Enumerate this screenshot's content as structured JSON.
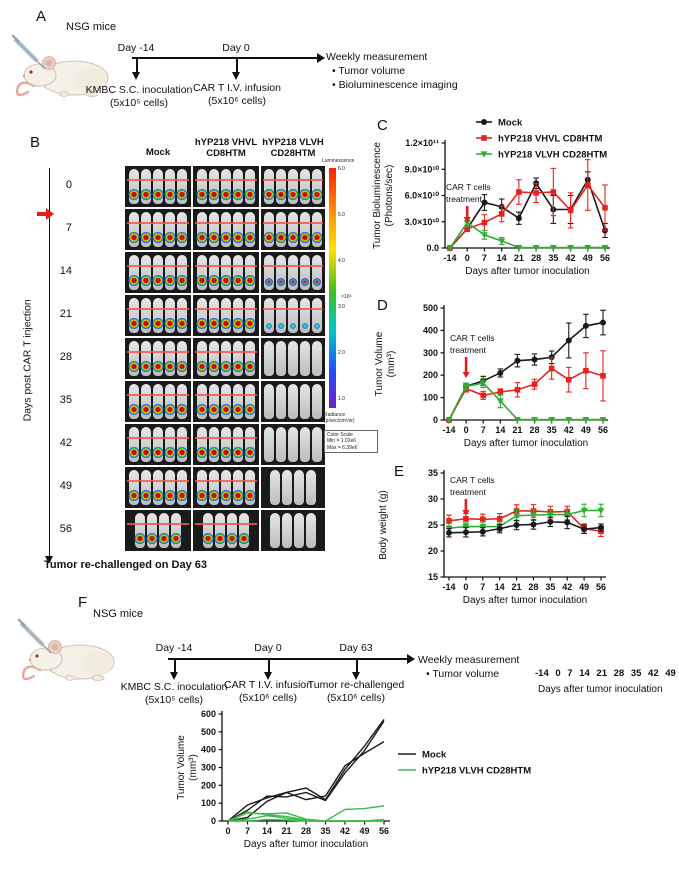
{
  "colors": {
    "black": "#1a1a1a",
    "red": "#e8231f",
    "green": "#2fad34",
    "green_light": "#3dbb4a",
    "arrow_red": "#e02020"
  },
  "panelA": {
    "label": "A",
    "subject": "NSG mice",
    "timepoints": [
      {
        "day": "Day -14",
        "event": "KMBC S.C. inoculation",
        "dose": "(5x10⁵ cells)"
      },
      {
        "day": "Day 0",
        "event": "CAR T I.V. infusion",
        "dose": "(5x10⁶ cells)"
      }
    ],
    "measurement": {
      "title": "Weekly measurement",
      "items": [
        "Tumor volume",
        "Bioluminescence imaging"
      ]
    }
  },
  "panelB": {
    "label": "B",
    "axis_label": "Days post CAR T injection",
    "columns": [
      [
        "Mock"
      ],
      [
        "hYP218 VHVL",
        "CD8HTM"
      ],
      [
        "hYP218 VLVH",
        "CD28HTM"
      ]
    ],
    "days": [
      "0",
      "7",
      "14",
      "21",
      "28",
      "35",
      "42",
      "49",
      "56"
    ],
    "cells": [
      [
        "5f",
        "5f",
        "5f"
      ],
      [
        "5f",
        "5f",
        "5f"
      ],
      [
        "5f",
        "5f",
        "5m"
      ],
      [
        "5f",
        "5f",
        "5t"
      ],
      [
        "5f",
        "5f",
        "5n"
      ],
      [
        "5f",
        "5f",
        "5n"
      ],
      [
        "5f",
        "5f",
        "5n"
      ],
      [
        "5f",
        "5f",
        "4n"
      ],
      [
        "4f",
        "4f",
        "4n"
      ]
    ],
    "colorbar": {
      "title": "Luminescence",
      "ticks": [
        "6.0",
        "5.0",
        "4.0",
        "3.0",
        "2.0",
        "1.0"
      ],
      "unit": "×10⁶",
      "radiance": [
        "Radiance",
        "(p/sec/cm²/sr)"
      ],
      "scale": [
        "Color Scale",
        "Min = 1.02e6",
        "Max = 6.39e6"
      ]
    },
    "footnote": "Tumor re-challenged on Day 63"
  },
  "panelF": {
    "label": "F",
    "subject": "NSG mice",
    "timepoints": [
      {
        "day": "Day -14",
        "event": "KMBC S.C. inoculation",
        "dose": "(5x10⁵ cells)"
      },
      {
        "day": "Day 0",
        "event": "CAR T I.V. infusion",
        "dose": "(5x10⁶ cells)"
      },
      {
        "day": "Day 63",
        "event": "Tumor re-challenged",
        "dose": "(5x10⁶ cells)"
      }
    ],
    "measurement": {
      "title": "Weekly measurement",
      "items": [
        "Tumor volume"
      ]
    }
  },
  "stray_axis": {
    "ticks": "-14  0   7   14  21 28 35 42 49",
    "label": "Days after tumor inoculation"
  },
  "chart_data": [
    {
      "id": "chartC",
      "panel_label": "C",
      "type": "line",
      "xlabel": "Days after tumor inoculation",
      "ylabel": [
        "Tumor Bioluminescence",
        "(Photons/sec)"
      ],
      "categories": [
        "-14",
        "0",
        "7",
        "14",
        "21",
        "28",
        "35",
        "42",
        "49",
        "56"
      ],
      "ylim": [
        0,
        12
      ],
      "yticks": [
        0,
        3,
        6,
        9,
        12
      ],
      "ytick_labels": [
        "0.0",
        "3.0×10¹⁰",
        "6.0×10¹⁰",
        "9.0×10¹⁰",
        "1.2×10¹¹"
      ],
      "y_unit": "1e10 photons/sec",
      "series": [
        {
          "name": "Mock",
          "color": "#1a1a1a",
          "marker": "circle",
          "values": [
            0,
            2.2,
            5.2,
            4.7,
            3.4,
            7.4,
            4.4,
            4.4,
            7.8,
            2.0
          ],
          "err": [
            0,
            0.3,
            0.9,
            0.9,
            0.7,
            0.6,
            1.6,
            1.6,
            0.9,
            0.8
          ]
        },
        {
          "name": "hYP218 VHVL CD8HTM",
          "color": "#e8231f",
          "marker": "square",
          "values": [
            0,
            2.2,
            2.9,
            3.9,
            6.4,
            6.3,
            6.4,
            4.3,
            7.2,
            4.6
          ],
          "err": [
            0,
            0.3,
            0.9,
            0.9,
            1.4,
            1.1,
            2.7,
            2.0,
            2.9,
            2.6
          ]
        },
        {
          "name": "hYP218 VLVH CD28HTM",
          "color": "#2fad34",
          "marker": "triangle",
          "values": [
            0,
            2.9,
            1.5,
            0.8,
            0.05,
            0.05,
            0.05,
            0.05,
            0.05,
            0.05
          ],
          "err": [
            0,
            0.5,
            0.5,
            0.4,
            0,
            0,
            0,
            0,
            0,
            0
          ]
        }
      ],
      "legend": true,
      "annotation": {
        "text": [
          "CAR T cells",
          "treatment"
        ],
        "at_category": "0"
      }
    },
    {
      "id": "chartD",
      "panel_label": "D",
      "type": "line",
      "xlabel": "Days after tumor inoculation",
      "ylabel": [
        "Tumor Volume",
        "(mm³)"
      ],
      "categories": [
        "-14",
        "0",
        "7",
        "14",
        "21",
        "28",
        "35",
        "42",
        "49",
        "56"
      ],
      "ylim": [
        0,
        500
      ],
      "yticks": [
        0,
        100,
        200,
        300,
        400,
        500
      ],
      "ytick_labels": [
        "0",
        "100",
        "200",
        "300",
        "400",
        "500"
      ],
      "y_unit": "mm3",
      "series": [
        {
          "name": "Mock",
          "color": "#1a1a1a",
          "marker": "circle",
          "values": [
            0,
            150,
            175,
            210,
            265,
            270,
            280,
            355,
            420,
            435
          ],
          "err": [
            0,
            15,
            20,
            18,
            28,
            25,
            28,
            78,
            52,
            55
          ]
        },
        {
          "name": "hYP218 VHVL CD8HTM",
          "color": "#e8231f",
          "marker": "square",
          "values": [
            0,
            140,
            110,
            125,
            135,
            160,
            230,
            180,
            220,
            197
          ],
          "err": [
            0,
            15,
            18,
            14,
            32,
            22,
            48,
            55,
            80,
            112
          ]
        },
        {
          "name": "hYP218 VLVH CD28HTM",
          "color": "#2fad34",
          "marker": "triangle",
          "values": [
            0,
            150,
            165,
            85,
            2,
            2,
            2,
            2,
            2,
            2
          ],
          "err": [
            0,
            15,
            20,
            30,
            0,
            0,
            0,
            0,
            0,
            0
          ]
        }
      ],
      "legend": false,
      "annotation": {
        "text": [
          "CAR T cells",
          "treatment"
        ],
        "at_category": "0"
      }
    },
    {
      "id": "chartE",
      "panel_label": "E",
      "type": "line",
      "xlabel": "Days after tumor inoculation",
      "ylabel": [
        "Body weight (g)"
      ],
      "categories": [
        "-14",
        "0",
        "7",
        "14",
        "21",
        "28",
        "35",
        "42",
        "49",
        "56"
      ],
      "ylim": [
        15,
        35
      ],
      "yticks": [
        15,
        20,
        25,
        30,
        35
      ],
      "ytick_labels": [
        "15",
        "20",
        "25",
        "30",
        "35"
      ],
      "y_unit": "g",
      "series": [
        {
          "name": "hYP218 VHVL CD8HTM",
          "color": "#e8231f",
          "marker": "square",
          "values": [
            25.8,
            26.2,
            26.1,
            26.2,
            27.7,
            27.7,
            27.5,
            27.6,
            24.3,
            23.8
          ],
          "err": [
            1.1,
            1.0,
            1.0,
            1.0,
            1.2,
            1.2,
            1.1,
            1.0,
            0.9,
            1.0
          ]
        },
        {
          "name": "hYP218 VLVH CD28HTM",
          "color": "#2fad34",
          "marker": "triangle",
          "values": [
            24.4,
            24.7,
            24.7,
            24.7,
            26.8,
            26.9,
            27.0,
            27.0,
            27.8,
            27.8
          ],
          "err": [
            0.9,
            0.9,
            0.9,
            0.9,
            1.0,
            1.0,
            1.0,
            1.0,
            1.2,
            1.2
          ]
        },
        {
          "name": "Mock",
          "color": "#1a1a1a",
          "marker": "circle",
          "values": [
            23.5,
            23.6,
            23.7,
            24.3,
            25.0,
            25.1,
            25.6,
            25.5,
            24.2,
            24.5
          ],
          "err": [
            0.8,
            0.9,
            0.8,
            0.8,
            0.9,
            0.9,
            0.9,
            1.2,
            0.8,
            0.7
          ]
        }
      ],
      "legend": false,
      "annotation": {
        "text": [
          "CAR T cells",
          "treatment"
        ],
        "at_category": "0"
      }
    },
    {
      "id": "chartF",
      "type": "line",
      "xlabel": "Days after tumor inoculation",
      "ylabel": [
        "Tumor Volume",
        "(mm³)"
      ],
      "categories": [
        "0",
        "7",
        "14",
        "21",
        "28",
        "35",
        "42",
        "49",
        "56"
      ],
      "ylim": [
        0,
        600
      ],
      "yticks": [
        0,
        100,
        200,
        300,
        400,
        500,
        600
      ],
      "ytick_labels": [
        "0",
        "100",
        "200",
        "300",
        "400",
        "500",
        "600"
      ],
      "y_unit": "mm3",
      "series": [
        {
          "name": "Mock",
          "color": "#1a1a1a",
          "marker": "none",
          "lines": [
            [
              0,
              90,
              130,
              160,
              185,
              120,
              290,
              420,
              570
            ],
            [
              0,
              60,
              140,
              135,
              160,
              115,
              270,
              395,
              560
            ],
            [
              0,
              20,
              110,
              160,
              120,
              140,
              310,
              380,
              445
            ]
          ]
        },
        {
          "name": "hYP218 VLVH CD28HTM",
          "color": "#3dbb4a",
          "marker": "none",
          "lines": [
            [
              0,
              45,
              40,
              45,
              10,
              0,
              65,
              70,
              85
            ],
            [
              0,
              50,
              35,
              25,
              5,
              0,
              0,
              0,
              8
            ],
            [
              0,
              10,
              30,
              15,
              2,
              0,
              0,
              0,
              0
            ],
            [
              0,
              0,
              8,
              5,
              0,
              0,
              0,
              0,
              0
            ]
          ]
        }
      ],
      "legend": true
    }
  ]
}
